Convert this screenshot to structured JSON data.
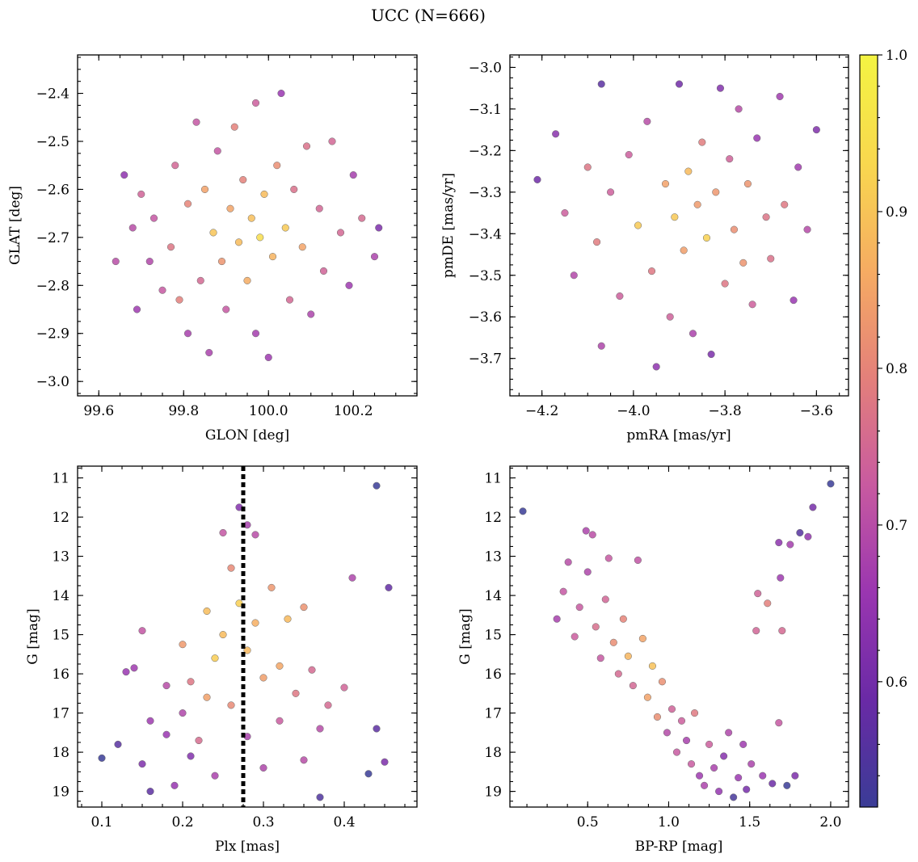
{
  "title": "UCC (N=666)",
  "colorbar": {
    "range": [
      0.52,
      1.0
    ],
    "ticks": [
      0.6,
      0.7,
      0.8,
      0.9,
      1.0
    ],
    "tick_labels": [
      "0.6",
      "0.7",
      "0.8",
      "0.9",
      "1.0"
    ],
    "colormap": "plasma",
    "stops": [
      "#3a3c96",
      "#6a2aa6",
      "#9a36b0",
      "#c85aa0",
      "#e4807a",
      "#f6ac62",
      "#f8d84e",
      "#f4f442"
    ]
  },
  "chart_data": [
    {
      "id": "sky",
      "type": "scatter",
      "xlabel": "GLON [deg]",
      "ylabel": "GLAT [deg]",
      "xlim": [
        99.55,
        100.35
      ],
      "ylim": [
        -3.03,
        -2.32
      ],
      "xticks": [
        99.6,
        99.8,
        100.0,
        100.2
      ],
      "xtick_labels": [
        "99.6",
        "99.8",
        "100.0",
        "100.2"
      ],
      "yticks": [
        -2.4,
        -2.5,
        -2.6,
        -2.7,
        -2.8,
        -2.9,
        -3.0
      ],
      "ytick_labels": [
        "−2.4",
        "−2.5",
        "−2.6",
        "−2.7",
        "−2.8",
        "−2.9",
        "−3.0"
      ],
      "y_inverted": false,
      "points": [
        [
          99.64,
          -2.75
        ],
        [
          99.66,
          -2.57
        ],
        [
          99.68,
          -2.68
        ],
        [
          99.69,
          -2.85
        ],
        [
          99.7,
          -2.61
        ],
        [
          99.72,
          -2.75
        ],
        [
          99.73,
          -2.66
        ],
        [
          99.75,
          -2.81
        ],
        [
          99.77,
          -2.72
        ],
        [
          99.78,
          -2.55
        ],
        [
          99.79,
          -2.83
        ],
        [
          99.81,
          -2.63
        ],
        [
          99.81,
          -2.9
        ],
        [
          99.83,
          -2.46
        ],
        [
          99.84,
          -2.79
        ],
        [
          99.85,
          -2.6
        ],
        [
          99.86,
          -2.94
        ],
        [
          99.87,
          -2.69
        ],
        [
          99.88,
          -2.52
        ],
        [
          99.89,
          -2.75
        ],
        [
          99.9,
          -2.85
        ],
        [
          99.91,
          -2.64
        ],
        [
          99.92,
          -2.47
        ],
        [
          99.93,
          -2.71
        ],
        [
          99.94,
          -2.58
        ],
        [
          99.95,
          -2.79
        ],
        [
          99.96,
          -2.66
        ],
        [
          99.97,
          -2.42
        ],
        [
          99.97,
          -2.9
        ],
        [
          99.98,
          -2.7
        ],
        [
          99.99,
          -2.61
        ],
        [
          100.0,
          -2.95
        ],
        [
          100.01,
          -2.74
        ],
        [
          100.02,
          -2.55
        ],
        [
          100.03,
          -2.4
        ],
        [
          100.04,
          -2.68
        ],
        [
          100.05,
          -2.83
        ],
        [
          100.06,
          -2.6
        ],
        [
          100.08,
          -2.72
        ],
        [
          100.09,
          -2.51
        ],
        [
          100.1,
          -2.86
        ],
        [
          100.12,
          -2.64
        ],
        [
          100.13,
          -2.77
        ],
        [
          100.15,
          -2.5
        ],
        [
          100.17,
          -2.69
        ],
        [
          100.19,
          -2.8
        ],
        [
          100.2,
          -2.57
        ],
        [
          100.22,
          -2.66
        ],
        [
          100.25,
          -2.74
        ],
        [
          100.26,
          -2.68
        ]
      ]
    },
    {
      "id": "pm",
      "type": "scatter",
      "xlabel": "pmRA [mas/yr]",
      "ylabel": "pmDE [mas/yr]",
      "xlim": [
        -4.27,
        -3.53
      ],
      "ylim": [
        -3.79,
        -2.97
      ],
      "xticks": [
        -4.2,
        -4.0,
        -3.8,
        -3.6
      ],
      "xtick_labels": [
        "−4.2",
        "−4.0",
        "−3.8",
        "−3.6"
      ],
      "yticks": [
        -3.0,
        -3.1,
        -3.2,
        -3.3,
        -3.4,
        -3.5,
        -3.6,
        -3.7
      ],
      "ytick_labels": [
        "−3.0",
        "−3.1",
        "−3.2",
        "−3.3",
        "−3.4",
        "−3.5",
        "−3.6",
        "−3.7"
      ],
      "y_inverted": false,
      "points": [
        [
          -4.21,
          -3.27
        ],
        [
          -4.17,
          -3.16
        ],
        [
          -4.15,
          -3.35
        ],
        [
          -4.13,
          -3.5
        ],
        [
          -4.1,
          -3.24
        ],
        [
          -4.08,
          -3.42
        ],
        [
          -4.07,
          -3.04
        ],
        [
          -4.07,
          -3.67
        ],
        [
          -4.05,
          -3.3
        ],
        [
          -4.03,
          -3.55
        ],
        [
          -4.01,
          -3.21
        ],
        [
          -3.99,
          -3.38
        ],
        [
          -3.97,
          -3.13
        ],
        [
          -3.96,
          -3.49
        ],
        [
          -3.95,
          -3.72
        ],
        [
          -3.93,
          -3.28
        ],
        [
          -3.92,
          -3.6
        ],
        [
          -3.91,
          -3.36
        ],
        [
          -3.9,
          -3.04
        ],
        [
          -3.89,
          -3.44
        ],
        [
          -3.88,
          -3.25
        ],
        [
          -3.87,
          -3.64
        ],
        [
          -3.86,
          -3.33
        ],
        [
          -3.85,
          -3.18
        ],
        [
          -3.84,
          -3.41
        ],
        [
          -3.83,
          -3.69
        ],
        [
          -3.82,
          -3.3
        ],
        [
          -3.81,
          -3.05
        ],
        [
          -3.8,
          -3.52
        ],
        [
          -3.79,
          -3.22
        ],
        [
          -3.78,
          -3.39
        ],
        [
          -3.77,
          -3.1
        ],
        [
          -3.76,
          -3.47
        ],
        [
          -3.75,
          -3.28
        ],
        [
          -3.74,
          -3.57
        ],
        [
          -3.73,
          -3.17
        ],
        [
          -3.71,
          -3.36
        ],
        [
          -3.7,
          -3.46
        ],
        [
          -3.68,
          -3.07
        ],
        [
          -3.67,
          -3.33
        ],
        [
          -3.65,
          -3.56
        ],
        [
          -3.64,
          -3.24
        ],
        [
          -3.62,
          -3.39
        ],
        [
          -3.6,
          -3.15
        ]
      ]
    },
    {
      "id": "plx",
      "type": "scatter",
      "xlabel": "Plx [mas]",
      "ylabel": "G [mag]",
      "xlim": [
        0.07,
        0.49
      ],
      "ylim": [
        19.4,
        10.7
      ],
      "xticks": [
        0.1,
        0.2,
        0.3,
        0.4
      ],
      "xtick_labels": [
        "0.1",
        "0.2",
        "0.3",
        "0.4"
      ],
      "yticks": [
        11,
        12,
        13,
        14,
        15,
        16,
        17,
        18,
        19
      ],
      "ytick_labels": [
        "11",
        "12",
        "13",
        "14",
        "15",
        "16",
        "17",
        "18",
        "19"
      ],
      "y_inverted": true,
      "vline": 0.275,
      "points": [
        [
          0.1,
          18.15
        ],
        [
          0.12,
          17.8
        ],
        [
          0.13,
          15.95
        ],
        [
          0.14,
          15.85
        ],
        [
          0.15,
          14.9
        ],
        [
          0.15,
          18.3
        ],
        [
          0.16,
          17.2
        ],
        [
          0.16,
          19.0
        ],
        [
          0.18,
          16.3
        ],
        [
          0.18,
          17.55
        ],
        [
          0.19,
          18.85
        ],
        [
          0.2,
          15.25
        ],
        [
          0.2,
          17.0
        ],
        [
          0.21,
          16.2
        ],
        [
          0.21,
          18.1
        ],
        [
          0.22,
          17.7
        ],
        [
          0.23,
          14.4
        ],
        [
          0.23,
          16.6
        ],
        [
          0.24,
          15.6
        ],
        [
          0.24,
          18.6
        ],
        [
          0.25,
          12.4
        ],
        [
          0.25,
          15.0
        ],
        [
          0.26,
          13.3
        ],
        [
          0.26,
          16.8
        ],
        [
          0.27,
          11.75
        ],
        [
          0.27,
          14.2
        ],
        [
          0.28,
          12.2
        ],
        [
          0.28,
          15.4
        ],
        [
          0.28,
          17.6
        ],
        [
          0.29,
          12.45
        ],
        [
          0.29,
          14.7
        ],
        [
          0.3,
          16.1
        ],
        [
          0.3,
          18.4
        ],
        [
          0.31,
          13.8
        ],
        [
          0.32,
          15.8
        ],
        [
          0.32,
          17.2
        ],
        [
          0.33,
          14.6
        ],
        [
          0.34,
          16.5
        ],
        [
          0.35,
          14.3
        ],
        [
          0.35,
          18.2
        ],
        [
          0.36,
          15.9
        ],
        [
          0.37,
          17.4
        ],
        [
          0.37,
          19.15
        ],
        [
          0.38,
          16.8
        ],
        [
          0.4,
          16.35
        ],
        [
          0.41,
          13.55
        ],
        [
          0.43,
          18.55
        ],
        [
          0.44,
          17.4
        ],
        [
          0.44,
          11.2
        ],
        [
          0.45,
          18.25
        ],
        [
          0.455,
          13.8
        ]
      ]
    },
    {
      "id": "cmd",
      "type": "scatter",
      "xlabel": "BP-RP [mag]",
      "ylabel": "G [mag]",
      "xlim": [
        0.02,
        2.11
      ],
      "ylim": [
        19.4,
        10.7
      ],
      "xticks": [
        0.5,
        1.0,
        1.5,
        2.0
      ],
      "xtick_labels": [
        "0.5",
        "1.0",
        "1.5",
        "2.0"
      ],
      "yticks": [
        11,
        12,
        13,
        14,
        15,
        16,
        17,
        18,
        19
      ],
      "ytick_labels": [
        "11",
        "12",
        "13",
        "14",
        "15",
        "16",
        "17",
        "18",
        "19"
      ],
      "y_inverted": true,
      "points": [
        [
          0.1,
          11.85
        ],
        [
          0.31,
          14.6
        ],
        [
          0.35,
          13.9
        ],
        [
          0.38,
          13.15
        ],
        [
          0.42,
          15.05
        ],
        [
          0.45,
          14.3
        ],
        [
          0.49,
          12.35
        ],
        [
          0.5,
          13.4
        ],
        [
          0.53,
          12.45
        ],
        [
          0.55,
          14.8
        ],
        [
          0.58,
          15.6
        ],
        [
          0.61,
          14.1
        ],
        [
          0.63,
          13.05
        ],
        [
          0.66,
          15.2
        ],
        [
          0.69,
          16.0
        ],
        [
          0.72,
          14.6
        ],
        [
          0.75,
          15.55
        ],
        [
          0.78,
          16.3
        ],
        [
          0.81,
          13.1
        ],
        [
          0.84,
          15.1
        ],
        [
          0.87,
          16.6
        ],
        [
          0.9,
          15.8
        ],
        [
          0.93,
          17.1
        ],
        [
          0.96,
          16.2
        ],
        [
          0.99,
          17.5
        ],
        [
          1.02,
          16.9
        ],
        [
          1.05,
          18.0
        ],
        [
          1.08,
          17.2
        ],
        [
          1.11,
          17.7
        ],
        [
          1.14,
          18.3
        ],
        [
          1.16,
          17.0
        ],
        [
          1.19,
          18.6
        ],
        [
          1.22,
          18.85
        ],
        [
          1.25,
          17.8
        ],
        [
          1.28,
          18.4
        ],
        [
          1.31,
          19.0
        ],
        [
          1.34,
          18.1
        ],
        [
          1.37,
          17.5
        ],
        [
          1.4,
          19.15
        ],
        [
          1.43,
          18.65
        ],
        [
          1.46,
          17.8
        ],
        [
          1.48,
          18.95
        ],
        [
          1.51,
          18.3
        ],
        [
          1.54,
          14.9
        ],
        [
          1.55,
          13.95
        ],
        [
          1.58,
          18.6
        ],
        [
          1.61,
          14.2
        ],
        [
          1.64,
          18.8
        ],
        [
          1.68,
          17.25
        ],
        [
          1.68,
          12.65
        ],
        [
          1.69,
          13.55
        ],
        [
          1.7,
          14.9
        ],
        [
          1.73,
          18.85
        ],
        [
          1.75,
          12.7
        ],
        [
          1.78,
          18.6
        ],
        [
          1.81,
          12.4
        ],
        [
          1.86,
          12.5
        ],
        [
          1.89,
          11.75
        ],
        [
          2.0,
          11.15
        ]
      ]
    }
  ]
}
